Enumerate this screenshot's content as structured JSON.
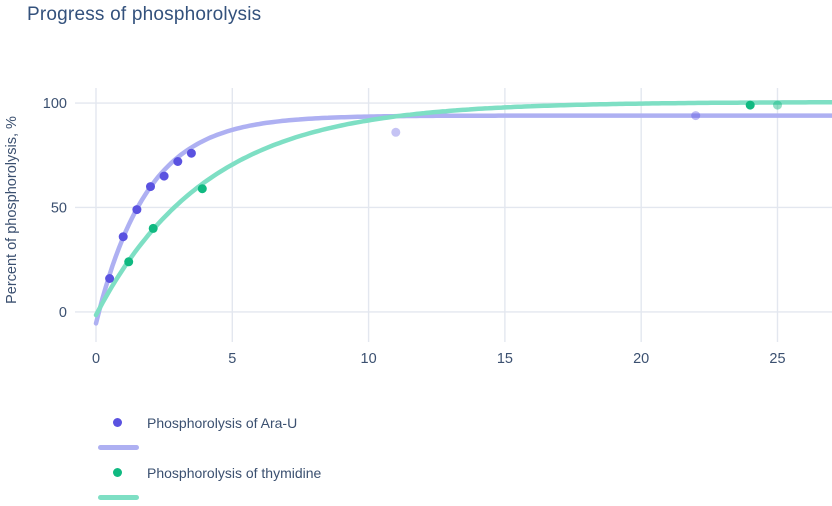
{
  "title": "Progress of phosphorolysis",
  "colors": {
    "title": "#33517c",
    "text": "#3b5070",
    "grid": "#e3e7ef",
    "background": "#ffffff"
  },
  "chart_data": {
    "type": "scatter",
    "mode": "markers+fitted-lines",
    "title": "Progress of phosphorolysis",
    "xlabel": "",
    "ylabel": "Percent of phosphorolysis, %",
    "x_ticks": [
      0,
      5,
      10,
      15,
      20,
      25
    ],
    "y_ticks": [
      0,
      50,
      100
    ],
    "x_range": [
      -0.77,
      27.0
    ],
    "y_range": [
      -14.4,
      107.2
    ],
    "grid": true,
    "legend_position": "bottom-left",
    "series": [
      {
        "id": "ara-u",
        "name": "Phosphorolysis of Ara-U",
        "marker_color": "#5a52e0",
        "line_color": "#aeb0f2",
        "points": [
          [
            0.5,
            16
          ],
          [
            1,
            36
          ],
          [
            1.5,
            49
          ],
          [
            2,
            60
          ],
          [
            2.5,
            65
          ],
          [
            3,
            72
          ],
          [
            3.5,
            76
          ],
          [
            11,
            86,
            0.35
          ],
          [
            22,
            94,
            0.4
          ]
        ],
        "curve": {
          "model": "y = plateau - amplitude*exp(-rate*x)",
          "plateau": 94,
          "amplitude": 99.5,
          "rate": 0.535,
          "x_start": 0,
          "x_end": 27
        }
      },
      {
        "id": "thymidine",
        "name": "Phosphorolysis of thymidine",
        "marker_color": "#10b981",
        "line_color": "#7edfc4",
        "points": [
          [
            1.2,
            24
          ],
          [
            2.1,
            40
          ],
          [
            3.9,
            59
          ],
          [
            24,
            99
          ],
          [
            25,
            99,
            0.45
          ]
        ],
        "curve": {
          "model": "y = plateau - amplitude*exp(-rate*x)",
          "plateau": 100.5,
          "amplitude": 102,
          "rate": 0.245,
          "x_start": 0,
          "x_end": 27
        }
      }
    ]
  }
}
